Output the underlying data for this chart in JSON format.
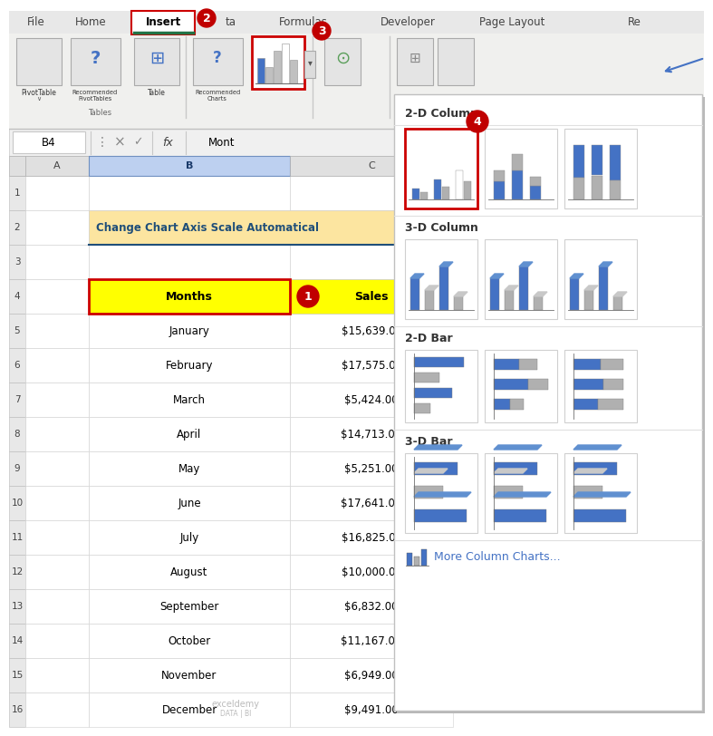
{
  "title": "Change Chart Axis Scale Automatical",
  "months": [
    "January",
    "February",
    "March",
    "April",
    "May",
    "June",
    "July",
    "August",
    "September",
    "October",
    "November",
    "December"
  ],
  "sales": [
    "$15,639.00",
    "$17,575.00",
    "$5,424.00",
    "$14,713.00",
    "$5,251.00",
    "$17,641.00",
    "$16,825.00",
    "$10,000.00",
    "$6,832.00",
    "$11,167.00",
    "$6,949.00",
    "$9,491.00"
  ],
  "cell_ref": "B4",
  "formula_bar_text": "Mont",
  "title_bg": "#fce5a0",
  "title_color": "#1f4e79",
  "header_yellow": "#ffff00",
  "badge_color": "#c00000",
  "blue_col": "#4472c4",
  "gray_col": "#909090",
  "more_charts_text": "More Column Charts...",
  "ribbon_bg": "#f0f0ee",
  "tab_bar_bg": "#e8e8e8",
  "white": "#ffffff",
  "light_gray": "#d8d8d8",
  "border_gray": "#b8b8b8",
  "insert_red": "#cc0000",
  "insert_green": "#217346",
  "dropdown_border": "#c0c0c0",
  "section_titles": [
    "2-D Column",
    "3-D Column",
    "2-D Bar",
    "3-D Bar"
  ]
}
